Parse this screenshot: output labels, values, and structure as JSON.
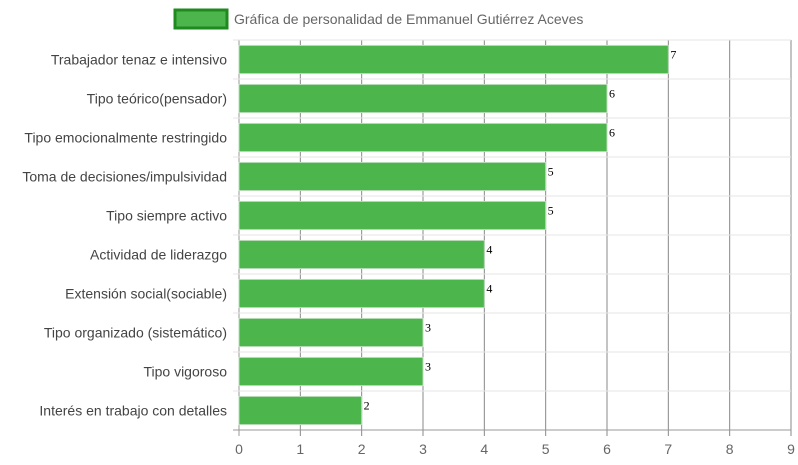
{
  "chart_data": {
    "type": "bar",
    "orientation": "horizontal",
    "title": "",
    "xlabel": "",
    "ylabel": "",
    "legend": {
      "position": "top",
      "entries": [
        "Gráfica de personalidad de Emmanuel Gutiérrez Aceves"
      ]
    },
    "grid": true,
    "xlim": [
      0,
      9
    ],
    "x_ticks": [
      "0",
      "1",
      "2",
      "3",
      "4",
      "5",
      "6",
      "7",
      "8",
      "9"
    ],
    "categories": [
      "Trabajador tenaz e intensivo",
      "Tipo teórico(pensador)",
      "Tipo emocionalmente restringido",
      "Toma de decisiones/impulsividad",
      "Tipo siempre activo",
      "Actividad de liderazgo",
      "Extensión social(sociable)",
      "Tipo organizado (sistemático)",
      "Tipo vigoroso",
      "Interés en trabajo con detalles"
    ],
    "series": [
      {
        "name": "Gráfica de personalidad de Emmanuel Gutiérrez Aceves",
        "values": [
          7,
          6,
          6,
          5,
          5,
          4,
          4,
          3,
          3,
          2
        ],
        "color": "#4cb54c",
        "border_color": "#1f8a1f"
      }
    ],
    "data_labels": [
      "7",
      "6",
      "6",
      "5",
      "5",
      "4",
      "4",
      "3",
      "3",
      "2"
    ]
  }
}
